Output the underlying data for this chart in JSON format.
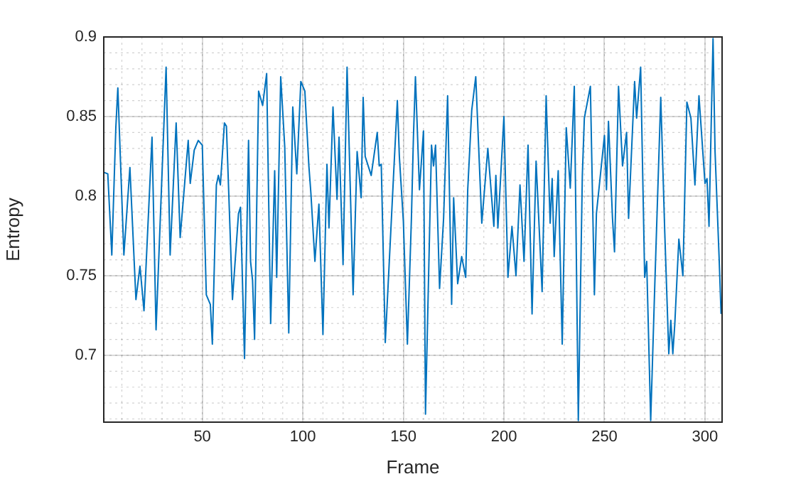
{
  "chart_data": {
    "type": "line",
    "xlabel": "Frame",
    "ylabel": "Entropy",
    "xlim": [
      1,
      308.5
    ],
    "xticks": [
      50,
      100,
      150,
      200,
      250,
      300
    ],
    "ylim": [
      0.658,
      0.9
    ],
    "yticks": [
      0.7,
      0.75,
      0.8,
      0.85,
      0.9
    ],
    "grid": true,
    "legend": false,
    "marker": "none",
    "line_style": "solid",
    "series": [
      {
        "color": "#0072bd",
        "x": [
          1,
          3,
          5,
          7,
          8,
          11,
          14,
          17,
          19,
          21,
          25,
          27,
          32,
          34,
          37,
          39,
          43,
          44,
          46,
          48,
          50,
          52,
          54,
          55,
          57,
          58,
          59,
          61,
          62,
          65,
          68,
          69,
          71,
          73,
          74,
          75,
          76,
          78,
          80,
          82,
          84,
          86,
          87,
          89,
          91,
          93,
          95,
          97,
          99,
          101,
          103,
          104,
          106,
          108,
          110,
          112,
          113,
          115,
          117,
          118,
          120,
          122,
          125,
          127,
          129,
          130,
          131,
          134,
          137,
          138,
          139,
          141,
          145,
          147,
          148,
          150,
          152,
          154,
          155,
          156,
          158,
          160,
          161,
          164,
          165,
          166,
          168,
          170,
          172,
          174,
          175,
          177,
          179,
          181,
          182,
          184,
          186,
          189,
          192,
          195,
          196,
          197,
          200,
          202,
          204,
          206,
          208,
          210,
          212,
          214,
          216,
          219,
          221,
          223,
          224,
          225,
          227,
          229,
          231,
          233,
          235,
          237,
          239,
          240,
          243,
          245,
          246,
          250,
          251,
          252,
          254,
          255,
          257,
          259,
          261,
          262,
          265,
          266,
          268,
          270,
          271,
          273,
          275,
          278,
          280,
          282,
          283,
          284,
          285,
          287,
          289,
          291,
          293,
          295,
          297,
          300,
          301,
          302,
          304,
          305,
          307,
          308
        ],
        "values": [
          0.815,
          0.814,
          0.763,
          0.843,
          0.868,
          0.763,
          0.818,
          0.735,
          0.756,
          0.728,
          0.837,
          0.716,
          0.881,
          0.763,
          0.846,
          0.774,
          0.835,
          0.808,
          0.829,
          0.835,
          0.832,
          0.738,
          0.732,
          0.707,
          0.807,
          0.813,
          0.807,
          0.846,
          0.844,
          0.735,
          0.789,
          0.793,
          0.698,
          0.835,
          0.759,
          0.747,
          0.71,
          0.866,
          0.857,
          0.877,
          0.72,
          0.816,
          0.749,
          0.875,
          0.831,
          0.714,
          0.856,
          0.814,
          0.872,
          0.866,
          0.819,
          0.802,
          0.759,
          0.795,
          0.713,
          0.82,
          0.78,
          0.856,
          0.798,
          0.837,
          0.757,
          0.881,
          0.738,
          0.828,
          0.799,
          0.862,
          0.825,
          0.813,
          0.84,
          0.819,
          0.82,
          0.708,
          0.81,
          0.86,
          0.825,
          0.784,
          0.707,
          0.786,
          0.837,
          0.875,
          0.804,
          0.841,
          0.663,
          0.832,
          0.819,
          0.832,
          0.742,
          0.786,
          0.863,
          0.732,
          0.799,
          0.745,
          0.762,
          0.749,
          0.804,
          0.854,
          0.875,
          0.783,
          0.83,
          0.781,
          0.813,
          0.78,
          0.85,
          0.749,
          0.781,
          0.75,
          0.807,
          0.759,
          0.832,
          0.726,
          0.822,
          0.74,
          0.863,
          0.783,
          0.811,
          0.762,
          0.816,
          0.707,
          0.843,
          0.805,
          0.869,
          0.659,
          0.813,
          0.849,
          0.869,
          0.738,
          0.789,
          0.838,
          0.804,
          0.847,
          0.786,
          0.765,
          0.869,
          0.819,
          0.84,
          0.786,
          0.872,
          0.849,
          0.881,
          0.749,
          0.759,
          0.659,
          0.743,
          0.862,
          0.777,
          0.701,
          0.722,
          0.701,
          0.72,
          0.773,
          0.75,
          0.859,
          0.849,
          0.807,
          0.863,
          0.808,
          0.811,
          0.781,
          0.899,
          0.828,
          0.762,
          0.726
        ]
      }
    ]
  }
}
